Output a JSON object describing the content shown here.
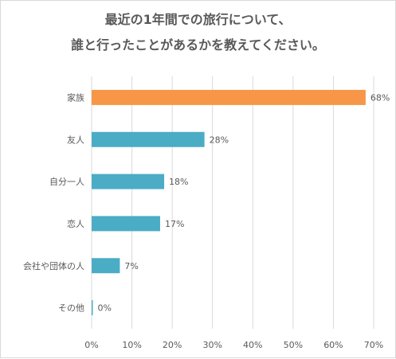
{
  "chart_data": {
    "type": "bar",
    "orientation": "horizontal",
    "title_lines": [
      "最近の1年間での旅行について、",
      "誰と行ったことがあるかを教えてください。"
    ],
    "categories": [
      "家族",
      "友人",
      "自分一人",
      "恋人",
      "会社や団体の人",
      "その他"
    ],
    "values": [
      68,
      28,
      18,
      17,
      7,
      0
    ],
    "value_labels": [
      "68%",
      "28%",
      "18%",
      "17%",
      "7%",
      "0%"
    ],
    "x_ticks": [
      "0%",
      "10%",
      "20%",
      "30%",
      "40%",
      "50%",
      "60%",
      "70%"
    ],
    "xlim": [
      0,
      70
    ],
    "grid": true,
    "colors": {
      "highlight": "#f79646",
      "bar": "#4bacc6",
      "grid": "#d9d9d9",
      "text": "#595959"
    }
  }
}
